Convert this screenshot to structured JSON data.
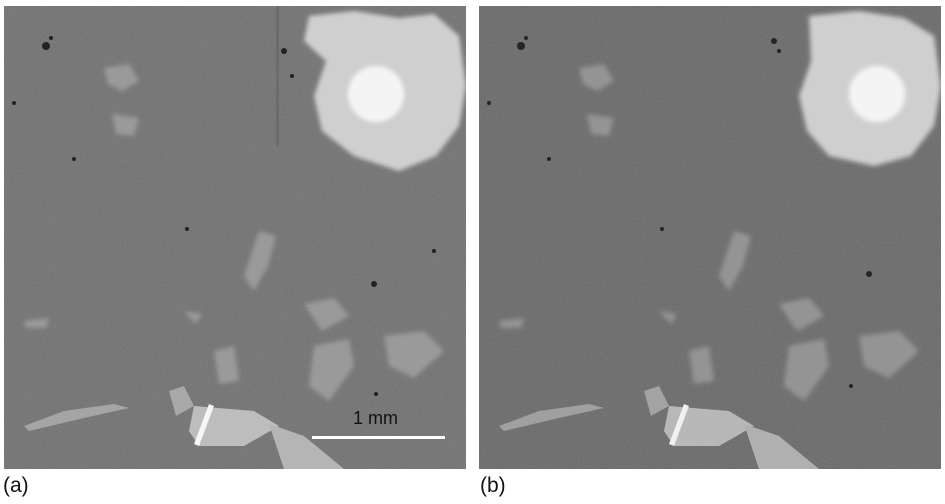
{
  "panels": [
    {
      "label": "(a)",
      "scale_bar": "1 mm"
    },
    {
      "label": "(b)"
    }
  ],
  "colors": {
    "matrix_gray": "#6f6f6f",
    "inclusion_light": "#d8d8d8",
    "bright_core": "#f4f4f4",
    "pore_dark": "#222222"
  }
}
